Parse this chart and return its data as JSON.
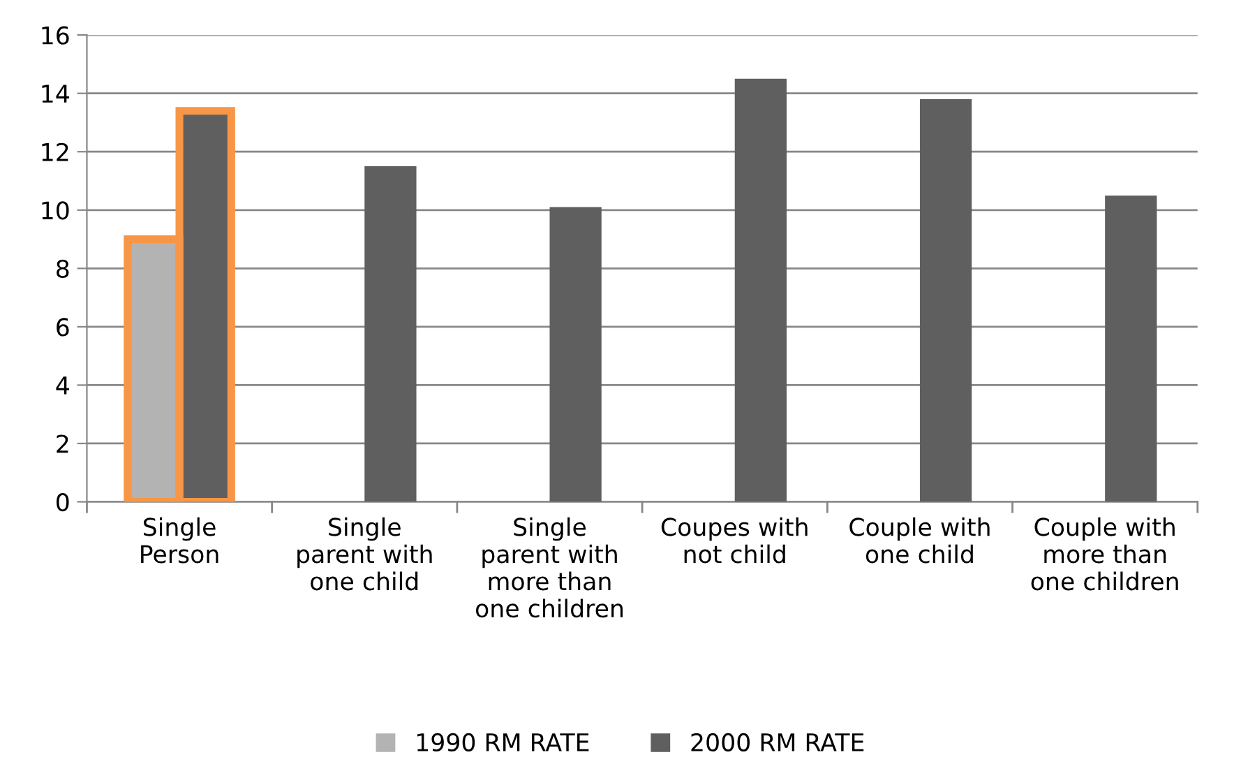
{
  "chart_data": {
    "type": "bar",
    "categories": [
      "Single\nPerson",
      "Single\nparent with\none child",
      "Single\nparent with\nmore than\none children",
      "Coupes with\nnot child",
      "Couple with\none child",
      "Couple with\nmore than\none children"
    ],
    "series": [
      {
        "name": "1990 RM RATE",
        "color": "#b3b3b3",
        "values": [
          9.0,
          null,
          null,
          null,
          null,
          null
        ]
      },
      {
        "name": "2000 RM RATE",
        "color": "#5f5f5f",
        "values": [
          13.4,
          11.5,
          10.1,
          14.5,
          13.8,
          10.5
        ]
      }
    ],
    "ylim": [
      0,
      16
    ],
    "yticks": [
      0,
      2,
      4,
      6,
      8,
      10,
      12,
      14,
      16
    ],
    "grid": "y",
    "legend": "bottom"
  }
}
